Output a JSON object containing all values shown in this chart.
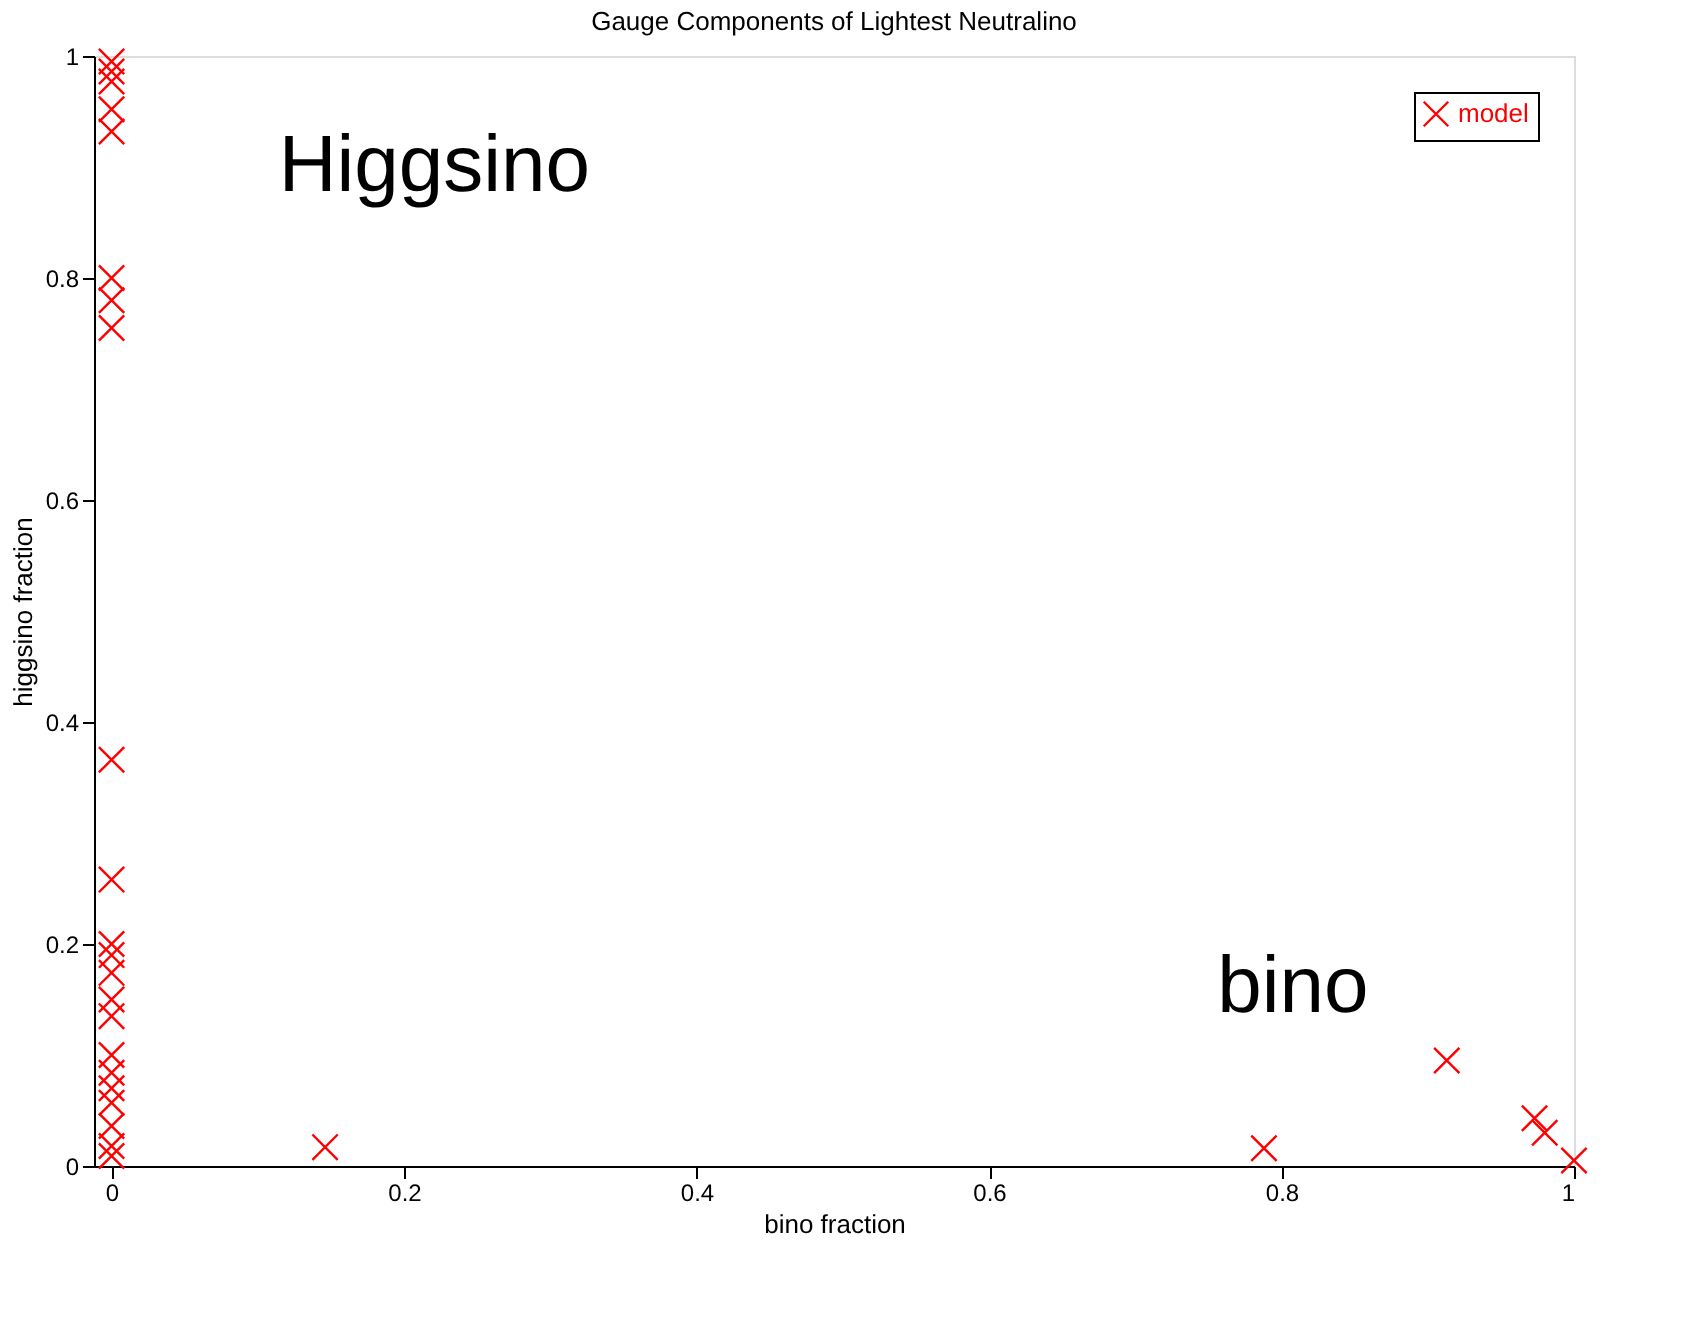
{
  "chart_data": {
    "type": "scatter",
    "title": "Gauge Components of Lightest Neutralino",
    "xlabel": "bino fraction",
    "ylabel": "higgsino fraction",
    "xlim": [
      -0.012,
      1.0
    ],
    "ylim": [
      0,
      1
    ],
    "xticks": [
      0,
      0.2,
      0.4,
      0.6,
      0.8,
      1
    ],
    "yticks": [
      0,
      0.2,
      0.4,
      0.6,
      0.8,
      1
    ],
    "grid": false,
    "legend": "top right",
    "marker": "cross",
    "annotations": [
      "Higgsino",
      "bino"
    ],
    "series": [
      {
        "name": "model",
        "color": "#ff0000",
        "x": [
          0,
          0,
          0,
          0,
          0,
          0,
          0,
          0,
          0,
          0,
          0,
          0,
          0,
          0,
          0,
          0,
          0,
          0,
          0,
          0,
          0,
          0,
          0.146,
          0.788,
          0.913,
          0.973,
          0.98,
          1.0
        ],
        "values": [
          0.995,
          0.986,
          0.977,
          0.952,
          0.932,
          0.8,
          0.78,
          0.755,
          0.366,
          0.258,
          0.2,
          0.19,
          0.174,
          0.15,
          0.135,
          0.1,
          0.084,
          0.07,
          0.057,
          0.036,
          0.018,
          0.009,
          0.017,
          0.016,
          0.095,
          0.043,
          0.03,
          0.005
        ]
      }
    ]
  }
}
